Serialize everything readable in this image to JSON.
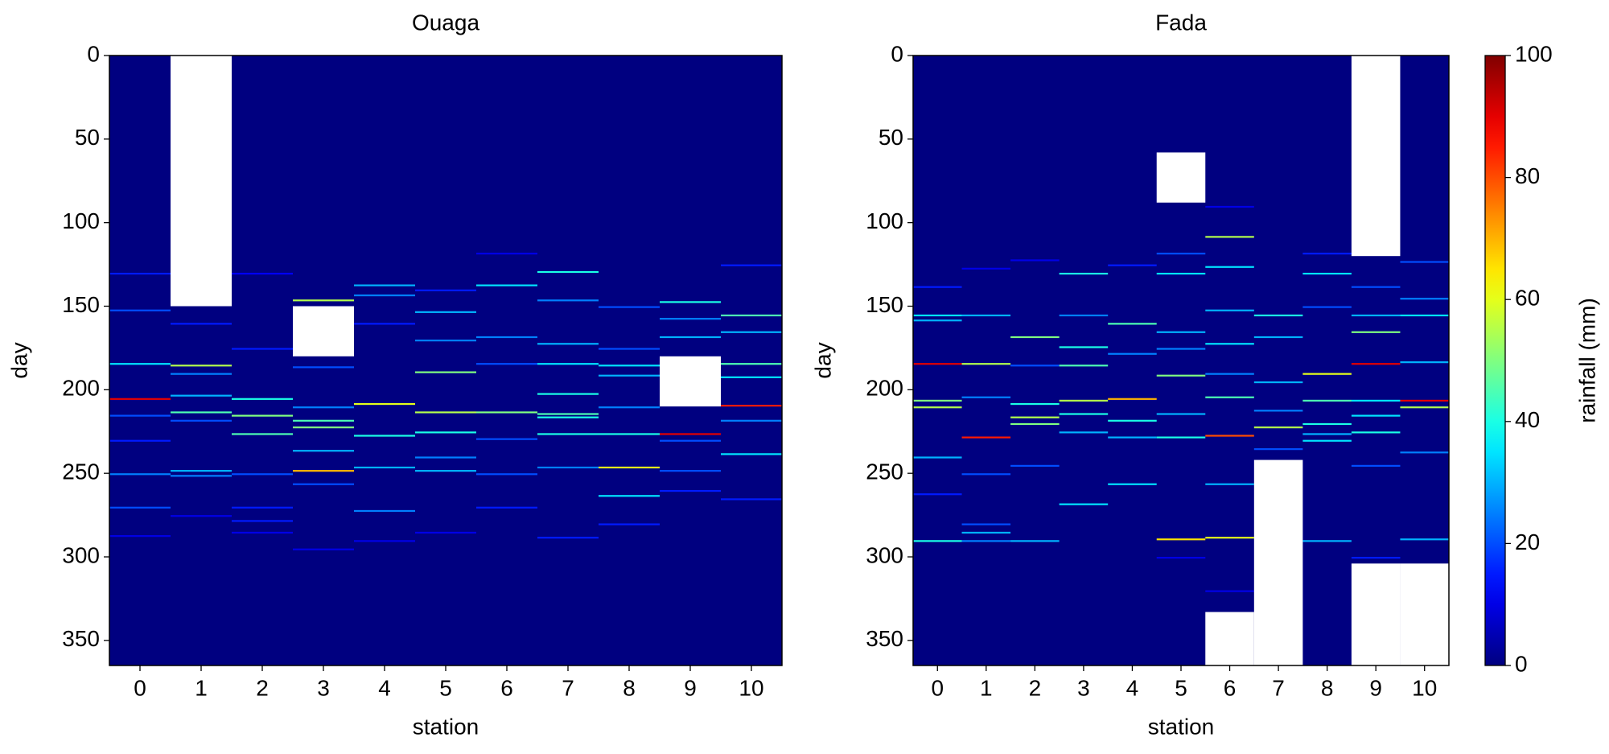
{
  "chart_data": [
    {
      "type": "heatmap",
      "title": "Ouaga",
      "xlabel": "station",
      "ylabel": "day",
      "cmap": "jet",
      "xlim": [
        -0.5,
        10.5
      ],
      "xticks": [
        0,
        1,
        2,
        3,
        4,
        5,
        6,
        7,
        8,
        9,
        10
      ],
      "ylim": [
        365,
        0
      ],
      "yticks": [
        0,
        50,
        100,
        150,
        200,
        250,
        300,
        350
      ],
      "clim": [
        0,
        100
      ],
      "missing": [
        [
          1,
          0,
          150
        ],
        [
          3,
          150,
          180
        ],
        [
          9,
          180,
          210
        ]
      ],
      "cells": [
        [
          0,
          130,
          15
        ],
        [
          0,
          152,
          20
        ],
        [
          0,
          184,
          35
        ],
        [
          0,
          205,
          90
        ],
        [
          0,
          215,
          20
        ],
        [
          0,
          230,
          15
        ],
        [
          0,
          250,
          25
        ],
        [
          0,
          270,
          20
        ],
        [
          0,
          287,
          10
        ],
        [
          1,
          160,
          15
        ],
        [
          1,
          185,
          55
        ],
        [
          1,
          190,
          25
        ],
        [
          1,
          203,
          30
        ],
        [
          1,
          213,
          45
        ],
        [
          1,
          218,
          20
        ],
        [
          1,
          248,
          30
        ],
        [
          1,
          251,
          25
        ],
        [
          1,
          275,
          10
        ],
        [
          2,
          130,
          12
        ],
        [
          2,
          175,
          15
        ],
        [
          2,
          205,
          40
        ],
        [
          2,
          215,
          50
        ],
        [
          2,
          226,
          45
        ],
        [
          2,
          250,
          20
        ],
        [
          2,
          270,
          15
        ],
        [
          2,
          278,
          15
        ],
        [
          2,
          285,
          10
        ],
        [
          3,
          146,
          55
        ],
        [
          3,
          186,
          20
        ],
        [
          3,
          210,
          25
        ],
        [
          3,
          218,
          45
        ],
        [
          3,
          222,
          50
        ],
        [
          3,
          236,
          30
        ],
        [
          3,
          248,
          70
        ],
        [
          3,
          256,
          20
        ],
        [
          3,
          295,
          10
        ],
        [
          4,
          137,
          30
        ],
        [
          4,
          143,
          25
        ],
        [
          4,
          160,
          15
        ],
        [
          4,
          208,
          60
        ],
        [
          4,
          227,
          40
        ],
        [
          4,
          246,
          30
        ],
        [
          4,
          272,
          25
        ],
        [
          4,
          290,
          10
        ],
        [
          5,
          140,
          15
        ],
        [
          5,
          153,
          30
        ],
        [
          5,
          170,
          25
        ],
        [
          5,
          189,
          50
        ],
        [
          5,
          213,
          55
        ],
        [
          5,
          225,
          40
        ],
        [
          5,
          240,
          25
        ],
        [
          5,
          248,
          30
        ],
        [
          5,
          285,
          10
        ],
        [
          6,
          118,
          10
        ],
        [
          6,
          137,
          35
        ],
        [
          6,
          168,
          25
        ],
        [
          6,
          184,
          20
        ],
        [
          6,
          213,
          50
        ],
        [
          6,
          229,
          20
        ],
        [
          6,
          250,
          20
        ],
        [
          6,
          270,
          15
        ],
        [
          7,
          129,
          40
        ],
        [
          7,
          146,
          25
        ],
        [
          7,
          172,
          30
        ],
        [
          7,
          184,
          35
        ],
        [
          7,
          202,
          40
        ],
        [
          7,
          214,
          45
        ],
        [
          7,
          216,
          40
        ],
        [
          7,
          226,
          40
        ],
        [
          7,
          246,
          25
        ],
        [
          7,
          288,
          15
        ],
        [
          8,
          150,
          20
        ],
        [
          8,
          175,
          20
        ],
        [
          8,
          185,
          35
        ],
        [
          8,
          191,
          30
        ],
        [
          8,
          210,
          25
        ],
        [
          8,
          226,
          40
        ],
        [
          8,
          246,
          60
        ],
        [
          8,
          263,
          35
        ],
        [
          8,
          280,
          15
        ],
        [
          9,
          147,
          40
        ],
        [
          9,
          157,
          25
        ],
        [
          9,
          168,
          30
        ],
        [
          9,
          226,
          90
        ],
        [
          9,
          230,
          20
        ],
        [
          9,
          248,
          20
        ],
        [
          9,
          260,
          15
        ],
        [
          10,
          125,
          15
        ],
        [
          10,
          155,
          45
        ],
        [
          10,
          165,
          30
        ],
        [
          10,
          184,
          45
        ],
        [
          10,
          192,
          35
        ],
        [
          10,
          209,
          85
        ],
        [
          10,
          218,
          25
        ],
        [
          10,
          238,
          35
        ],
        [
          10,
          265,
          15
        ]
      ]
    },
    {
      "type": "heatmap",
      "title": "Fada",
      "xlabel": "station",
      "ylabel": "day",
      "cmap": "jet",
      "xlim": [
        -0.5,
        10.5
      ],
      "xticks": [
        0,
        1,
        2,
        3,
        4,
        5,
        6,
        7,
        8,
        9,
        10
      ],
      "ylim": [
        365,
        0
      ],
      "yticks": [
        0,
        50,
        100,
        150,
        200,
        250,
        300,
        350
      ],
      "clim": [
        0,
        100
      ],
      "colorbar": {
        "label": "rainfall (mm)",
        "ticks": [
          0,
          20,
          40,
          60,
          80,
          100
        ]
      },
      "missing": [
        [
          5,
          58,
          88
        ],
        [
          9,
          0,
          120
        ],
        [
          7,
          242,
          365
        ],
        [
          6,
          333,
          365
        ],
        [
          9,
          304,
          365
        ],
        [
          10,
          304,
          365
        ]
      ],
      "cells": [
        [
          0,
          138,
          15
        ],
        [
          0,
          155,
          35
        ],
        [
          0,
          158,
          30
        ],
        [
          0,
          184,
          90
        ],
        [
          0,
          206,
          50
        ],
        [
          0,
          210,
          55
        ],
        [
          0,
          240,
          30
        ],
        [
          0,
          262,
          15
        ],
        [
          0,
          290,
          40
        ],
        [
          1,
          127,
          10
        ],
        [
          1,
          155,
          30
        ],
        [
          1,
          184,
          55
        ],
        [
          1,
          204,
          25
        ],
        [
          1,
          228,
          85
        ],
        [
          1,
          250,
          20
        ],
        [
          1,
          280,
          20
        ],
        [
          1,
          285,
          30
        ],
        [
          1,
          290,
          25
        ],
        [
          2,
          122,
          10
        ],
        [
          2,
          168,
          50
        ],
        [
          2,
          185,
          20
        ],
        [
          2,
          208,
          40
        ],
        [
          2,
          216,
          55
        ],
        [
          2,
          220,
          50
        ],
        [
          2,
          245,
          20
        ],
        [
          2,
          290,
          30
        ],
        [
          3,
          130,
          40
        ],
        [
          3,
          155,
          25
        ],
        [
          3,
          174,
          40
        ],
        [
          3,
          185,
          45
        ],
        [
          3,
          206,
          55
        ],
        [
          3,
          214,
          40
        ],
        [
          3,
          225,
          30
        ],
        [
          3,
          268,
          35
        ],
        [
          4,
          125,
          15
        ],
        [
          4,
          160,
          45
        ],
        [
          4,
          178,
          25
        ],
        [
          4,
          205,
          70
        ],
        [
          4,
          218,
          40
        ],
        [
          4,
          228,
          30
        ],
        [
          4,
          256,
          35
        ],
        [
          5,
          118,
          20
        ],
        [
          5,
          130,
          35
        ],
        [
          5,
          165,
          30
        ],
        [
          5,
          175,
          25
        ],
        [
          5,
          191,
          50
        ],
        [
          5,
          214,
          30
        ],
        [
          5,
          228,
          40
        ],
        [
          5,
          289,
          65
        ],
        [
          5,
          300,
          10
        ],
        [
          6,
          90,
          10
        ],
        [
          6,
          108,
          55
        ],
        [
          6,
          126,
          35
        ],
        [
          6,
          152,
          30
        ],
        [
          6,
          172,
          35
        ],
        [
          6,
          190,
          25
        ],
        [
          6,
          204,
          45
        ],
        [
          6,
          227,
          80
        ],
        [
          6,
          256,
          30
        ],
        [
          6,
          288,
          60
        ],
        [
          6,
          320,
          10
        ],
        [
          7,
          155,
          40
        ],
        [
          7,
          168,
          30
        ],
        [
          7,
          195,
          30
        ],
        [
          7,
          212,
          25
        ],
        [
          7,
          222,
          55
        ],
        [
          7,
          235,
          20
        ],
        [
          8,
          118,
          15
        ],
        [
          8,
          130,
          35
        ],
        [
          8,
          150,
          20
        ],
        [
          8,
          190,
          60
        ],
        [
          8,
          206,
          45
        ],
        [
          8,
          220,
          40
        ],
        [
          8,
          226,
          30
        ],
        [
          8,
          230,
          35
        ],
        [
          8,
          290,
          30
        ],
        [
          9,
          138,
          20
        ],
        [
          9,
          155,
          30
        ],
        [
          9,
          165,
          50
        ],
        [
          9,
          184,
          90
        ],
        [
          9,
          206,
          35
        ],
        [
          9,
          215,
          35
        ],
        [
          9,
          225,
          40
        ],
        [
          9,
          245,
          20
        ],
        [
          9,
          300,
          15
        ],
        [
          10,
          123,
          20
        ],
        [
          10,
          145,
          25
        ],
        [
          10,
          155,
          35
        ],
        [
          10,
          183,
          30
        ],
        [
          10,
          206,
          90
        ],
        [
          10,
          210,
          55
        ],
        [
          10,
          237,
          25
        ],
        [
          10,
          289,
          30
        ]
      ]
    }
  ]
}
